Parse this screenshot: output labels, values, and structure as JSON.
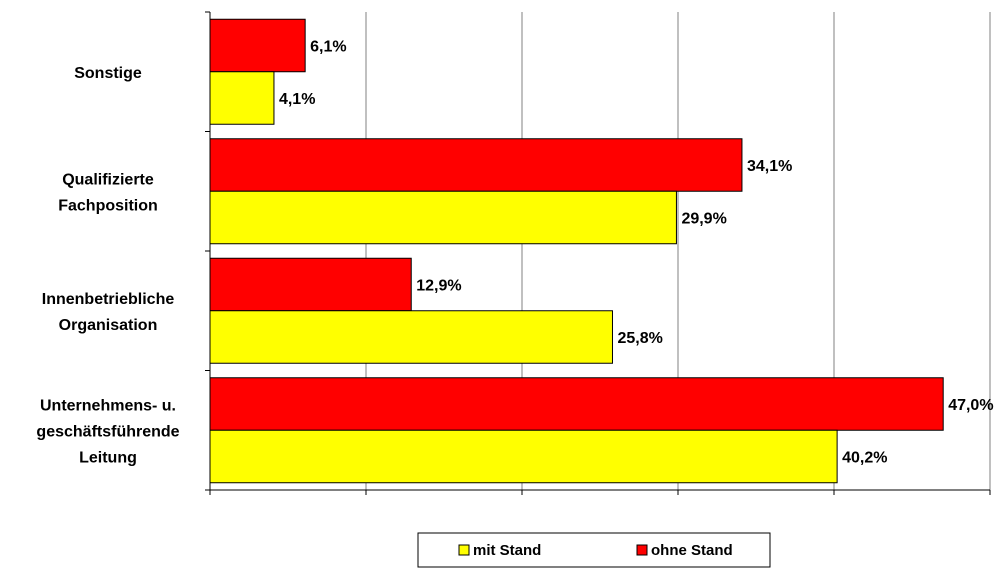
{
  "chart_data": {
    "type": "bar",
    "orientation": "horizontal",
    "categories": [
      [
        "Sonstige"
      ],
      [
        "Qualifizierte",
        "Fachposition"
      ],
      [
        "Innenbetriebliche",
        "Organisation"
      ],
      [
        "Unternehmens- u.",
        "geschäftsführende",
        "Leitung"
      ]
    ],
    "series": [
      {
        "name": "mit Stand",
        "color": "#ffff00",
        "values": [
          4.1,
          29.9,
          25.8,
          40.2
        ],
        "labels": [
          "4,1%",
          "29,9%",
          "25,8%",
          "40,2%"
        ]
      },
      {
        "name": "ohne Stand",
        "color": "#ff0000",
        "values": [
          6.1,
          34.1,
          12.9,
          47.0
        ],
        "labels": [
          "6,1%",
          "34,1%",
          "12,9%",
          "47,0%"
        ]
      }
    ],
    "xlim": [
      0,
      50
    ],
    "x_major_step": 10,
    "grid": "vertical",
    "legend_position": "bottom"
  }
}
